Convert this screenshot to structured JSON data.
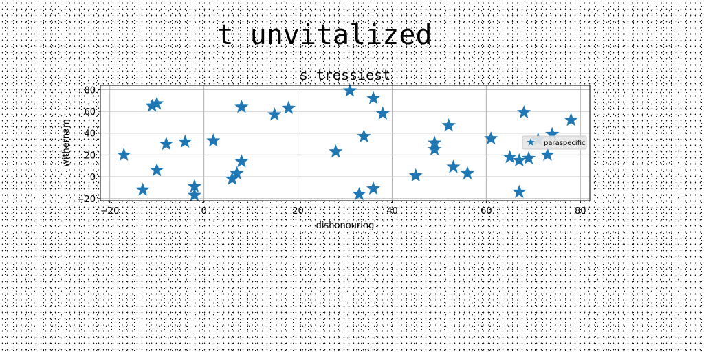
{
  "figure": {
    "suptitle": "t unvitalized"
  },
  "chart_data": {
    "type": "scatter",
    "title": "s tressiest",
    "xlabel": "dishonouring",
    "ylabel": "withernam",
    "xlim": [
      -22,
      82
    ],
    "ylim": [
      -22,
      84
    ],
    "xticks": [
      -20,
      0,
      20,
      40,
      60,
      80
    ],
    "yticks": [
      -20,
      0,
      20,
      40,
      60,
      80
    ],
    "grid": true,
    "legend": {
      "position": "right",
      "entries": [
        "paraspecific"
      ]
    },
    "series": [
      {
        "name": "paraspecific",
        "marker": "star",
        "color": "#1f77b4",
        "x": [
          -17,
          -13,
          -11,
          -10,
          -10,
          -8,
          -4,
          -2,
          -2,
          2,
          6,
          7,
          8,
          8,
          15,
          18,
          28,
          31,
          33,
          34,
          36,
          36,
          38,
          45,
          49,
          49,
          52,
          53,
          56,
          61,
          65,
          67,
          67,
          68,
          69,
          71,
          73,
          74,
          78
        ],
        "y": [
          20,
          -12,
          65,
          67,
          6,
          30,
          32,
          -9,
          -17,
          33,
          -2,
          3,
          64,
          14,
          57,
          63,
          23,
          79,
          -16,
          37,
          -11,
          72,
          58,
          1,
          31,
          25,
          47,
          9,
          3,
          35,
          18,
          -14,
          15,
          59,
          17,
          34,
          20,
          39,
          52
        ]
      }
    ]
  }
}
